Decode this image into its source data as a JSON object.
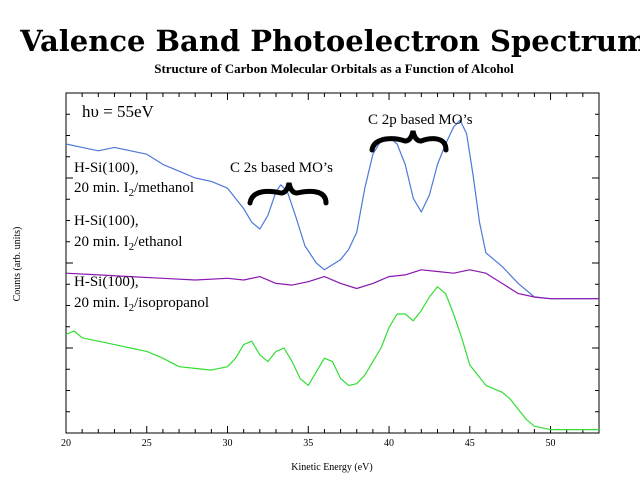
{
  "chart_data": {
    "type": "line",
    "title": "Valence Band Photoelectron Spectrum",
    "subtitle": "Structure of Carbon Molecular Orbitals as a Function of Alcohol",
    "xlabel": "Kinetic Energy (eV)",
    "ylabel": "Counts (arb. units)",
    "xlim": [
      20,
      53
    ],
    "xticks": [
      20,
      25,
      30,
      35,
      40,
      45,
      50
    ],
    "grid": false,
    "series": [
      {
        "name": "methanol",
        "label_line1": "H-Si(100),",
        "label_line2_pre": "20 min. I",
        "label_sub": "2",
        "label_line2_post": "/methanol",
        "color": "#4f78d8",
        "x": [
          20,
          21,
          22,
          23,
          24,
          25,
          26,
          27,
          28,
          29,
          30,
          31,
          31.5,
          32,
          32.5,
          33,
          33.3,
          33.7,
          34.2,
          34.8,
          35.5,
          36,
          37,
          37.5,
          38,
          38.5,
          39,
          39.5,
          40,
          40.5,
          41,
          41.5,
          42,
          42.5,
          43,
          43.5,
          44,
          44.4,
          44.8,
          45.2,
          45.6,
          46,
          47,
          48,
          49,
          50,
          51,
          52,
          53
        ],
        "y": [
          85,
          84,
          83,
          84,
          83,
          82,
          79,
          77,
          75,
          74,
          72,
          66,
          62,
          60,
          64,
          71,
          73,
          71,
          64,
          55,
          50,
          48,
          51,
          54,
          59,
          72,
          82,
          86,
          87,
          85,
          79,
          69,
          65,
          70,
          79,
          85,
          90,
          92,
          88,
          76,
          62,
          53,
          49,
          44,
          40,
          39.5,
          39.5,
          39.5,
          39.5
        ]
      },
      {
        "name": "ethanol",
        "label_line1": "H-Si(100),",
        "label_line2_pre": "20 min. I",
        "label_sub": "2",
        "label_line2_post": "/ethanol",
        "color": "#8a18b0",
        "x": [
          20,
          22,
          24,
          26,
          28,
          30,
          31,
          32,
          33,
          34,
          35,
          36,
          37,
          38,
          39,
          40,
          41,
          42,
          43,
          44,
          45,
          46,
          47,
          48,
          49,
          50,
          51,
          52,
          53
        ],
        "y": [
          47,
          46.5,
          46,
          45.5,
          45,
          45.5,
          45,
          46,
          44,
          43.5,
          44.5,
          46,
          44,
          42.5,
          44,
          46,
          46.5,
          48,
          47.5,
          47,
          48,
          47,
          44,
          41,
          40,
          39.5,
          39.5,
          39.5,
          39.5
        ]
      },
      {
        "name": "isopropanol",
        "label_line1": "H-Si(100),",
        "label_line2_pre": "20 min. I",
        "label_sub": "2",
        "label_line2_post": "/isopropanol",
        "color": "#33dd33",
        "x": [
          20,
          20.5,
          21,
          22,
          23,
          24,
          25,
          26,
          27,
          28,
          29,
          30,
          30.5,
          31,
          31.5,
          32,
          32.5,
          33,
          33.5,
          34,
          34.5,
          35,
          35.5,
          36,
          36.5,
          37,
          37.5,
          38,
          38.5,
          39,
          39.5,
          40,
          40.5,
          41,
          41.5,
          42,
          42.5,
          43,
          43.5,
          44,
          44.5,
          45,
          45.5,
          46,
          46.5,
          47,
          47.5,
          48,
          48.5,
          49,
          49.5,
          50,
          51,
          52,
          53
        ],
        "y": [
          29,
          30,
          28,
          27,
          26,
          25,
          24,
          22,
          19.5,
          19,
          18.5,
          19.5,
          22,
          26,
          27,
          23,
          21,
          24,
          25,
          21,
          16,
          14,
          18,
          22,
          21,
          16,
          14,
          14.5,
          17,
          21,
          25,
          31,
          35,
          35,
          33,
          36,
          40,
          43,
          41,
          35,
          28,
          20,
          17,
          14,
          13,
          12,
          10,
          7,
          4,
          2,
          1.5,
          1,
          1,
          1,
          1
        ]
      }
    ],
    "annotations": {
      "photon_energy": "hυ = 55eV",
      "c2s": "C 2s based MO’s",
      "c2p": "C 2p based MO’s"
    }
  }
}
